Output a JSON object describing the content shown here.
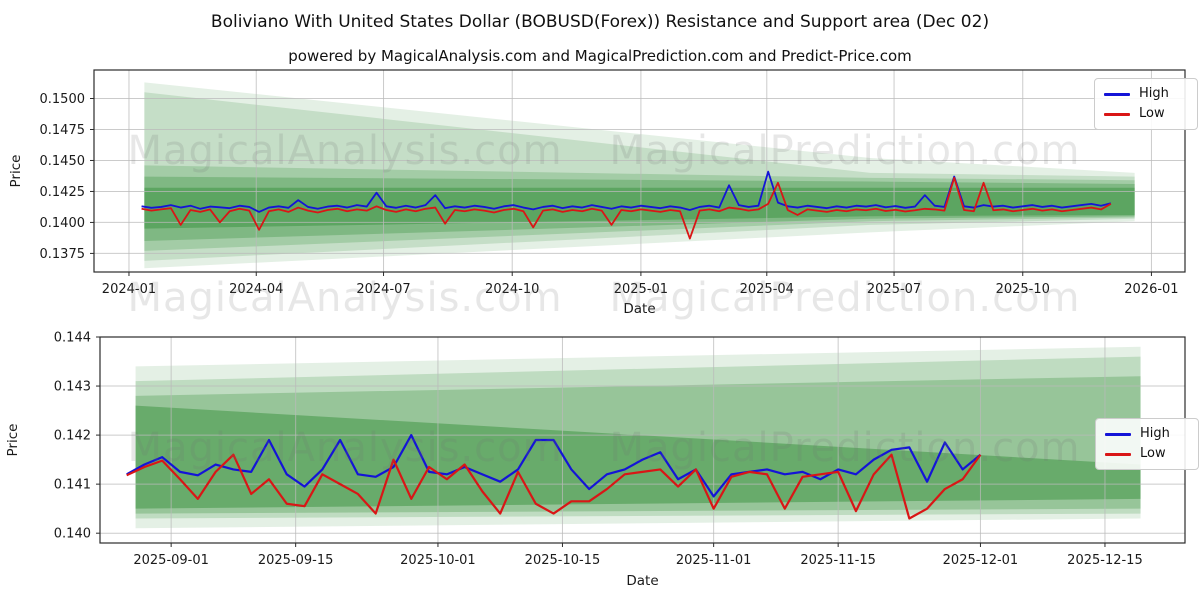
{
  "title": "Boliviano With United States Dollar (BOBUSD(Forex)) Resistance and Support area (Dec 02)",
  "subtitle": "powered by MagicalAnalysis.com and MagicalPrediction.com and Predict-Price.com",
  "watermark": {
    "left_text": "MagicalAnalysis.com",
    "right_text": "MagicalPrediction.com"
  },
  "colors": {
    "high": "#1414d7",
    "low": "#d91616",
    "band": "#2e8b33",
    "grid": "#b9b9b9",
    "spine": "#2b2b2b",
    "text": "#1a1a1a",
    "watermark": "rgba(110,110,110,0.17)"
  },
  "chart_data": [
    {
      "type": "line",
      "name": "full-history-chart",
      "xlabel": "Date",
      "ylabel": "Price",
      "grid": true,
      "legend_position": "upper right",
      "xlim": [
        "2023-12-07",
        "2026-01-25"
      ],
      "ylim": [
        0.136,
        0.1523
      ],
      "xticks": [
        {
          "date": "2024-01-01",
          "label": "2024-01"
        },
        {
          "date": "2024-04-01",
          "label": "2024-04"
        },
        {
          "date": "2024-07-01",
          "label": "2024-07"
        },
        {
          "date": "2024-10-01",
          "label": "2024-10"
        },
        {
          "date": "2025-01-01",
          "label": "2025-01"
        },
        {
          "date": "2025-04-01",
          "label": "2025-04"
        },
        {
          "date": "2025-07-01",
          "label": "2025-07"
        },
        {
          "date": "2025-10-01",
          "label": "2025-10"
        },
        {
          "date": "2026-01-01",
          "label": "2026-01"
        }
      ],
      "yticks": [
        {
          "v": 0.15,
          "label": "0.1500"
        },
        {
          "v": 0.1475,
          "label": "0.1475"
        },
        {
          "v": 0.145,
          "label": "0.1450"
        },
        {
          "v": 0.1425,
          "label": "0.1425"
        },
        {
          "v": 0.14,
          "label": "0.1400"
        },
        {
          "v": 0.1375,
          "label": "0.1375"
        }
      ],
      "bands": [
        {
          "x": [
            "2024-01-12",
            "2025-06-14",
            "2025-12-20"
          ],
          "hi": [
            0.1513,
            0.1452,
            0.144
          ],
          "lo": [
            0.1363,
            0.1392,
            0.1401
          ],
          "alpha": 0.13
        },
        {
          "x": [
            "2024-01-12",
            "2025-06-14",
            "2025-12-20"
          ],
          "hi": [
            0.1505,
            0.144,
            0.1437
          ],
          "lo": [
            0.1369,
            0.1398,
            0.1403
          ],
          "alpha": 0.17
        },
        {
          "x": [
            "2024-01-12",
            "2025-06-14",
            "2025-12-20"
          ],
          "hi": [
            0.1446,
            0.1436,
            0.1434
          ],
          "lo": [
            0.1377,
            0.1401,
            0.1404
          ],
          "alpha": 0.22
        },
        {
          "x": [
            "2024-01-12",
            "2025-06-14",
            "2025-12-20"
          ],
          "hi": [
            0.1437,
            0.1433,
            0.1431
          ],
          "lo": [
            0.1385,
            0.1403,
            0.1405
          ],
          "alpha": 0.3
        },
        {
          "x": [
            "2024-01-12",
            "2025-06-14",
            "2025-12-20"
          ],
          "hi": [
            0.1428,
            0.1428,
            0.1428
          ],
          "lo": [
            0.1395,
            0.1405,
            0.1406
          ],
          "alpha": 0.42
        }
      ],
      "series": [
        {
          "name": "High",
          "color_key": "high",
          "x_start": "2024-01-10",
          "x_step_days": 7,
          "values": [
            0.1413,
            0.14118,
            0.14125,
            0.1414,
            0.1412,
            0.14135,
            0.1411,
            0.14128,
            0.14122,
            0.14115,
            0.14135,
            0.14125,
            0.14085,
            0.1412,
            0.1413,
            0.14118,
            0.1418,
            0.14125,
            0.1411,
            0.14128,
            0.14135,
            0.1412,
            0.1414,
            0.14128,
            0.1424,
            0.1413,
            0.14118,
            0.14135,
            0.1412,
            0.1414,
            0.1422,
            0.14115,
            0.1413,
            0.1412,
            0.14135,
            0.14125,
            0.1411,
            0.1413,
            0.1414,
            0.1412,
            0.14105,
            0.14125,
            0.14135,
            0.14115,
            0.1413,
            0.1412,
            0.1414,
            0.14125,
            0.1411,
            0.1413,
            0.1412,
            0.14135,
            0.14125,
            0.14115,
            0.1413,
            0.1412,
            0.141,
            0.14125,
            0.14135,
            0.1412,
            0.143,
            0.1414,
            0.14125,
            0.14135,
            0.1441,
            0.1416,
            0.1413,
            0.1412,
            0.14135,
            0.14125,
            0.14115,
            0.1413,
            0.1412,
            0.14135,
            0.14128,
            0.1414,
            0.14122,
            0.14132,
            0.14118,
            0.14128,
            0.1422,
            0.14135,
            0.14125,
            0.1437,
            0.1413,
            0.1412,
            0.1414,
            0.14128,
            0.14135,
            0.1412,
            0.1413,
            0.1414,
            0.14125,
            0.14135,
            0.1412,
            0.1413,
            0.1414,
            0.1415,
            0.14135,
            0.14155
          ]
        },
        {
          "name": "Low",
          "color_key": "low",
          "x_start": "2024-01-10",
          "x_step_days": 7,
          "values": [
            0.1411,
            0.14095,
            0.14105,
            0.14115,
            0.1398,
            0.141,
            0.14085,
            0.14105,
            0.14,
            0.1409,
            0.1411,
            0.14095,
            0.1394,
            0.1409,
            0.14105,
            0.14085,
            0.1412,
            0.14095,
            0.1408,
            0.141,
            0.1411,
            0.1409,
            0.14105,
            0.14095,
            0.1413,
            0.141,
            0.14085,
            0.14105,
            0.1409,
            0.1411,
            0.1412,
            0.1399,
            0.141,
            0.1409,
            0.14105,
            0.14095,
            0.1408,
            0.141,
            0.1411,
            0.1409,
            0.1396,
            0.14095,
            0.14105,
            0.14085,
            0.141,
            0.1409,
            0.1411,
            0.14095,
            0.1398,
            0.141,
            0.1409,
            0.14105,
            0.14095,
            0.14085,
            0.141,
            0.1409,
            0.1387,
            0.14095,
            0.14105,
            0.1409,
            0.1412,
            0.1411,
            0.14095,
            0.14105,
            0.1415,
            0.1432,
            0.141,
            0.1406,
            0.14105,
            0.14095,
            0.14085,
            0.141,
            0.1409,
            0.14105,
            0.14098,
            0.1411,
            0.14092,
            0.14102,
            0.14088,
            0.14098,
            0.1411,
            0.14105,
            0.14095,
            0.1436,
            0.141,
            0.1409,
            0.1432,
            0.14098,
            0.14105,
            0.1409,
            0.141,
            0.1411,
            0.14095,
            0.14105,
            0.1409,
            0.141,
            0.1411,
            0.1412,
            0.14105,
            0.1415
          ]
        }
      ]
    },
    {
      "type": "line",
      "name": "recent-detail-chart",
      "xlabel": "Date",
      "ylabel": "Price",
      "grid": true,
      "legend_position": "center right",
      "xlim": [
        "2025-08-24",
        "2025-12-24"
      ],
      "ylim": [
        0.1398,
        0.144
      ],
      "xticks": [
        {
          "date": "2025-09-01",
          "label": "2025-09-01"
        },
        {
          "date": "2025-09-15",
          "label": "2025-09-15"
        },
        {
          "date": "2025-10-01",
          "label": "2025-10-01"
        },
        {
          "date": "2025-10-15",
          "label": "2025-10-15"
        },
        {
          "date": "2025-11-01",
          "label": "2025-11-01"
        },
        {
          "date": "2025-11-15",
          "label": "2025-11-15"
        },
        {
          "date": "2025-12-01",
          "label": "2025-12-01"
        },
        {
          "date": "2025-12-15",
          "label": "2025-12-15"
        }
      ],
      "yticks": [
        {
          "v": 0.144,
          "label": "0.144"
        },
        {
          "v": 0.143,
          "label": "0.143"
        },
        {
          "v": 0.142,
          "label": "0.142"
        },
        {
          "v": 0.141,
          "label": "0.141"
        },
        {
          "v": 0.14,
          "label": "0.140"
        }
      ],
      "bands": [
        {
          "x": [
            "2025-08-28",
            "2025-12-19"
          ],
          "hi": [
            0.1434,
            0.1438
          ],
          "lo": [
            0.1401,
            0.1403
          ],
          "alpha": 0.13
        },
        {
          "x": [
            "2025-08-28",
            "2025-12-19"
          ],
          "hi": [
            0.1431,
            0.1436
          ],
          "lo": [
            0.1403,
            0.1404
          ],
          "alpha": 0.2
        },
        {
          "x": [
            "2025-08-28",
            "2025-12-19"
          ],
          "hi": [
            0.1428,
            0.1432
          ],
          "lo": [
            0.1404,
            0.1405
          ],
          "alpha": 0.28
        },
        {
          "x": [
            "2025-08-28",
            "2025-12-19"
          ],
          "hi": [
            0.1426,
            0.1414
          ],
          "lo": [
            0.1405,
            0.1407
          ],
          "alpha": 0.45
        }
      ],
      "series": [
        {
          "name": "High",
          "color_key": "high",
          "x_start": "2025-08-27",
          "x_step_days": 2,
          "values": [
            0.1412,
            0.1414,
            0.14155,
            0.14125,
            0.14118,
            0.1414,
            0.1413,
            0.14125,
            0.1419,
            0.1412,
            0.14095,
            0.1413,
            0.1419,
            0.1412,
            0.14115,
            0.14135,
            0.142,
            0.14125,
            0.1412,
            0.14135,
            0.1412,
            0.14105,
            0.1413,
            0.1419,
            0.1419,
            0.1413,
            0.1409,
            0.1412,
            0.1413,
            0.1415,
            0.14165,
            0.1411,
            0.1413,
            0.14075,
            0.1412,
            0.14125,
            0.1413,
            0.1412,
            0.14125,
            0.1411,
            0.1413,
            0.1412,
            0.1415,
            0.1417,
            0.14175,
            0.14105,
            0.14185,
            0.1413,
            0.1416
          ]
        },
        {
          "name": "Low",
          "color_key": "low",
          "x_start": "2025-08-27",
          "x_step_days": 2,
          "values": [
            0.14118,
            0.14135,
            0.14148,
            0.1411,
            0.1407,
            0.14125,
            0.1416,
            0.1408,
            0.1411,
            0.1406,
            0.14055,
            0.1412,
            0.141,
            0.1408,
            0.1404,
            0.1415,
            0.1407,
            0.14135,
            0.1411,
            0.1414,
            0.14085,
            0.1404,
            0.14125,
            0.1406,
            0.1404,
            0.14065,
            0.14065,
            0.1409,
            0.1412,
            0.14125,
            0.1413,
            0.14095,
            0.1413,
            0.1405,
            0.14115,
            0.14125,
            0.1412,
            0.1405,
            0.14115,
            0.1412,
            0.14125,
            0.14045,
            0.1412,
            0.1416,
            0.1403,
            0.1405,
            0.1409,
            0.1411,
            0.1416
          ]
        }
      ]
    }
  ]
}
